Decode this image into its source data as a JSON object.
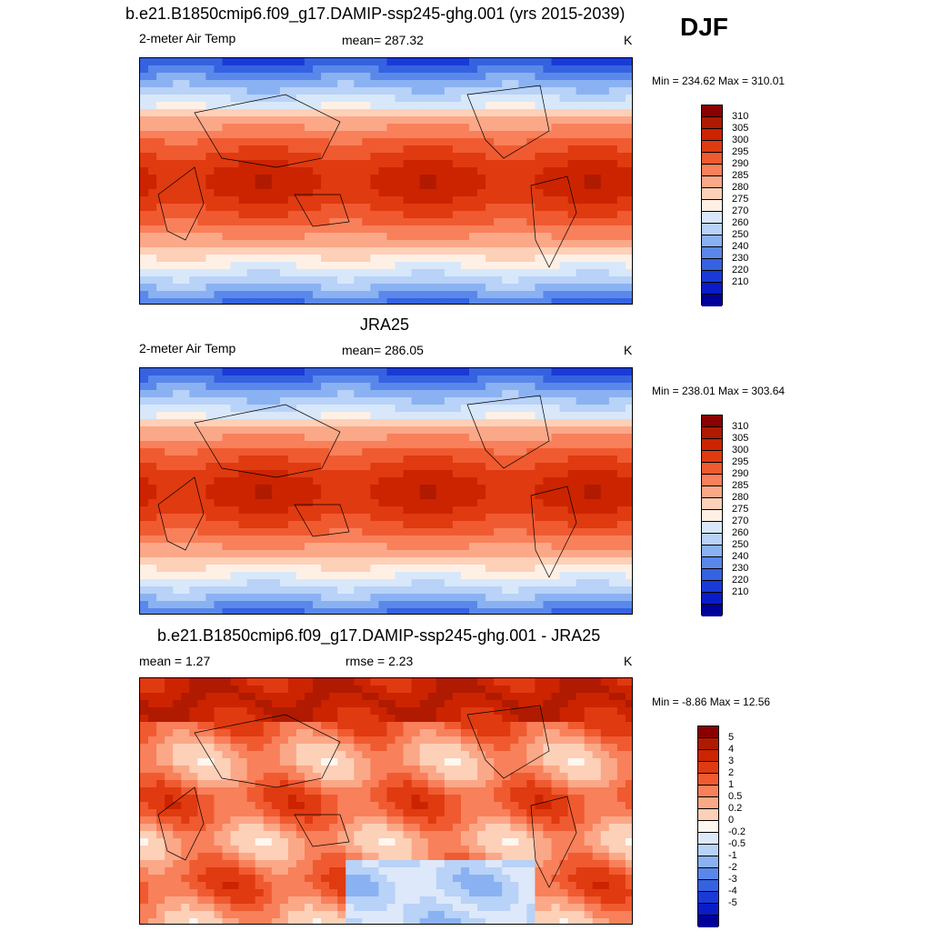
{
  "season": "DJF",
  "chart_data": [
    {
      "type": "heatmap",
      "title": "b.e21.B1850cmip6.f09_g17.DAMIP-ssp245-ghg.001 (yrs 2015-2039)",
      "left_label": "2-meter Air Temp",
      "center_label": "mean= 287.32",
      "units": "K",
      "minmax": "Min = 234.62 Max = 310.01",
      "colorbar_labels": [
        "310",
        "305",
        "300",
        "295",
        "290",
        "285",
        "280",
        "275",
        "270",
        "260",
        "250",
        "240",
        "230",
        "220",
        "210"
      ],
      "colors": [
        "#8b0000",
        "#b01a00",
        "#cc2400",
        "#e03a10",
        "#f05a30",
        "#f8805a",
        "#fba888",
        "#fdd0b8",
        "#fff0e6",
        "#d8e8fa",
        "#b8d2f8",
        "#8ab2f2",
        "#5a88ea",
        "#3562e0",
        "#1a3ad8",
        "#0a1cc8",
        "#00009a"
      ],
      "temp_scale": {
        "equator": 300,
        "pole": 238
      }
    },
    {
      "type": "heatmap",
      "title": "JRA25",
      "left_label": "2-meter Air Temp",
      "center_label": "mean= 286.05",
      "units": "K",
      "minmax": "Min = 238.01 Max = 303.64",
      "colorbar_labels": [
        "310",
        "305",
        "300",
        "295",
        "290",
        "285",
        "280",
        "275",
        "270",
        "260",
        "250",
        "240",
        "230",
        "220",
        "210"
      ],
      "colors": [
        "#8b0000",
        "#b01a00",
        "#cc2400",
        "#e03a10",
        "#f05a30",
        "#f8805a",
        "#fba888",
        "#fdd0b8",
        "#fff0e6",
        "#d8e8fa",
        "#b8d2f8",
        "#8ab2f2",
        "#5a88ea",
        "#3562e0",
        "#1a3ad8",
        "#0a1cc8",
        "#00009a"
      ],
      "temp_scale": {
        "equator": 298,
        "pole": 240
      }
    },
    {
      "type": "heatmap",
      "title": "b.e21.B1850cmip6.f09_g17.DAMIP-ssp245-ghg.001 - JRA25",
      "left_label": "mean =   1.27",
      "center_label": "rmse =   2.23",
      "units": "K",
      "minmax": "Min =  -8.86 Max =  12.56",
      "colorbar_labels": [
        "5",
        "4",
        "3",
        "2",
        "1",
        "0.5",
        "0.2",
        "0",
        "-0.2",
        "-0.5",
        "-1",
        "-2",
        "-3",
        "-4",
        "-5"
      ],
      "colors": [
        "#8b0000",
        "#b01a00",
        "#cc2400",
        "#e03a10",
        "#f05a30",
        "#f8805a",
        "#fba888",
        "#fdd0b8",
        "#fff6f0",
        "#dde8fa",
        "#b8d2f8",
        "#8ab2f2",
        "#5a88ea",
        "#3562e0",
        "#1a3ad8",
        "#0a1cc8",
        "#00009a"
      ],
      "temp_scale": {
        "equator": 1.3,
        "pole": 1.3
      }
    }
  ]
}
